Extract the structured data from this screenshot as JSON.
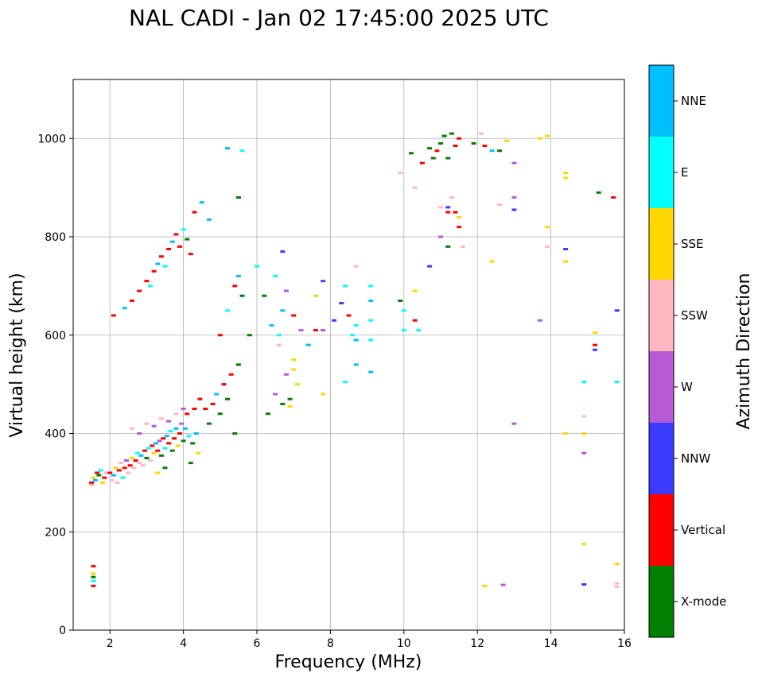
{
  "chart_data": {
    "type": "scatter",
    "title": "NAL CADI - Jan 02 17:45:00 2025 UTC",
    "xlabel": "Frequency (MHz)",
    "ylabel": "Virtual height (km)",
    "xlim": [
      1,
      16
    ],
    "ylim": [
      0,
      1120
    ],
    "xticks": [
      2,
      4,
      6,
      8,
      10,
      12,
      14,
      16
    ],
    "yticks": [
      0,
      200,
      400,
      600,
      800,
      1000
    ],
    "grid": true,
    "colorbar": {
      "label": "Azimuth Direction",
      "categories": [
        {
          "name": "X-mode",
          "color": "#008000"
        },
        {
          "name": "Vertical",
          "color": "#ff0000"
        },
        {
          "name": "NNW",
          "color": "#3b3bff"
        },
        {
          "name": "W",
          "color": "#b65ad6"
        },
        {
          "name": "SSW",
          "color": "#ffb6c1"
        },
        {
          "name": "SSE",
          "color": "#ffd700"
        },
        {
          "name": "E",
          "color": "#00ffff"
        },
        {
          "name": "NNE",
          "color": "#00bfff"
        }
      ]
    },
    "points": [
      [
        1.5,
        300,
        "Vertical"
      ],
      [
        1.55,
        310,
        "SSE"
      ],
      [
        1.6,
        305,
        "NNE"
      ],
      [
        1.5,
        295,
        "SSW"
      ],
      [
        1.65,
        320,
        "Vertical"
      ],
      [
        1.7,
        315,
        "X-mode"
      ],
      [
        1.8,
        300,
        "SSE"
      ],
      [
        1.75,
        325,
        "E"
      ],
      [
        1.85,
        310,
        "Vertical"
      ],
      [
        1.9,
        320,
        "SSW"
      ],
      [
        1.55,
        130,
        "Vertical"
      ],
      [
        1.55,
        115,
        "SSE"
      ],
      [
        1.55,
        100,
        "E"
      ],
      [
        1.55,
        90,
        "Vertical"
      ],
      [
        1.55,
        108,
        "X-mode"
      ],
      [
        2.0,
        320,
        "Vertical"
      ],
      [
        2.05,
        305,
        "SSW"
      ],
      [
        2.1,
        315,
        "NNE"
      ],
      [
        2.15,
        330,
        "SSE"
      ],
      [
        2.2,
        300,
        "SSW"
      ],
      [
        2.25,
        325,
        "Vertical"
      ],
      [
        2.3,
        340,
        "SSW"
      ],
      [
        2.35,
        310,
        "E"
      ],
      [
        2.4,
        330,
        "Vertical"
      ],
      [
        2.45,
        345,
        "W"
      ],
      [
        2.5,
        320,
        "SSW"
      ],
      [
        2.55,
        335,
        "Vertical"
      ],
      [
        2.6,
        350,
        "SSE"
      ],
      [
        2.65,
        330,
        "SSW"
      ],
      [
        2.7,
        345,
        "Vertical"
      ],
      [
        2.75,
        360,
        "E"
      ],
      [
        2.8,
        340,
        "SSW"
      ],
      [
        2.85,
        355,
        "NNE"
      ],
      [
        2.9,
        335,
        "SSW"
      ],
      [
        2.95,
        365,
        "Vertical"
      ],
      [
        3.0,
        350,
        "X-mode"
      ],
      [
        3.05,
        370,
        "E"
      ],
      [
        3.1,
        345,
        "SSW"
      ],
      [
        3.15,
        375,
        "Vertical"
      ],
      [
        3.2,
        360,
        "SSE"
      ],
      [
        3.25,
        380,
        "NNE"
      ],
      [
        3.3,
        365,
        "Vertical"
      ],
      [
        3.35,
        385,
        "W"
      ],
      [
        3.4,
        355,
        "X-mode"
      ],
      [
        3.45,
        390,
        "Vertical"
      ],
      [
        3.5,
        370,
        "E"
      ],
      [
        3.55,
        395,
        "NNE"
      ],
      [
        3.6,
        380,
        "Vertical"
      ],
      [
        3.65,
        405,
        "E"
      ],
      [
        3.7,
        365,
        "X-mode"
      ],
      [
        3.75,
        390,
        "Vertical"
      ],
      [
        3.8,
        410,
        "NNE"
      ],
      [
        3.85,
        375,
        "SSE"
      ],
      [
        3.9,
        400,
        "Vertical"
      ],
      [
        3.95,
        420,
        "W"
      ],
      [
        4.0,
        385,
        "X-mode"
      ],
      [
        4.05,
        410,
        "NNE"
      ],
      [
        4.1,
        440,
        "Vertical"
      ],
      [
        4.15,
        395,
        "E"
      ],
      [
        4.2,
        340,
        "X-mode"
      ],
      [
        4.25,
        380,
        "X-mode"
      ],
      [
        4.3,
        450,
        "Vertical"
      ],
      [
        4.35,
        400,
        "NNE"
      ],
      [
        4.4,
        360,
        "SSE"
      ],
      [
        4.45,
        470,
        "Vertical"
      ],
      [
        2.6,
        410,
        "SSW"
      ],
      [
        2.8,
        400,
        "W"
      ],
      [
        3.0,
        420,
        "SSW"
      ],
      [
        3.2,
        415,
        "W"
      ],
      [
        3.4,
        430,
        "SSW"
      ],
      [
        3.6,
        425,
        "W"
      ],
      [
        3.8,
        440,
        "SSW"
      ],
      [
        4.0,
        450,
        "W"
      ],
      [
        3.3,
        320,
        "SSE"
      ],
      [
        3.5,
        330,
        "X-mode"
      ],
      [
        2.1,
        640,
        "Vertical"
      ],
      [
        2.4,
        655,
        "NNE"
      ],
      [
        2.6,
        670,
        "Vertical"
      ],
      [
        2.8,
        690,
        "Vertical"
      ],
      [
        3.0,
        710,
        "Vertical"
      ],
      [
        3.1,
        700,
        "E"
      ],
      [
        3.2,
        730,
        "Vertical"
      ],
      [
        3.3,
        745,
        "NNE"
      ],
      [
        3.4,
        760,
        "Vertical"
      ],
      [
        3.5,
        740,
        "E"
      ],
      [
        3.6,
        775,
        "Vertical"
      ],
      [
        3.7,
        790,
        "NNE"
      ],
      [
        3.8,
        805,
        "Vertical"
      ],
      [
        3.9,
        780,
        "Vertical"
      ],
      [
        4.0,
        815,
        "E"
      ],
      [
        4.1,
        795,
        "X-mode"
      ],
      [
        4.2,
        765,
        "Vertical"
      ],
      [
        4.3,
        850,
        "Vertical"
      ],
      [
        4.5,
        870,
        "NNE"
      ],
      [
        4.7,
        835,
        "NNE"
      ],
      [
        4.6,
        450,
        "Vertical"
      ],
      [
        4.7,
        420,
        "X-mode"
      ],
      [
        4.8,
        460,
        "Vertical"
      ],
      [
        4.9,
        480,
        "NNE"
      ],
      [
        5.0,
        440,
        "X-mode"
      ],
      [
        5.1,
        500,
        "Vertical"
      ],
      [
        5.2,
        470,
        "X-mode"
      ],
      [
        5.3,
        520,
        "Vertical"
      ],
      [
        5.4,
        400,
        "X-mode"
      ],
      [
        5.5,
        540,
        "X-mode"
      ],
      [
        5.0,
        600,
        "Vertical"
      ],
      [
        5.2,
        650,
        "E"
      ],
      [
        5.4,
        700,
        "Vertical"
      ],
      [
        5.5,
        720,
        "NNE"
      ],
      [
        5.6,
        680,
        "X-mode"
      ],
      [
        5.8,
        600,
        "X-mode"
      ],
      [
        6.0,
        740,
        "E"
      ],
      [
        5.2,
        980,
        "NNE"
      ],
      [
        5.6,
        975,
        "E"
      ],
      [
        5.5,
        880,
        "X-mode"
      ],
      [
        6.2,
        680,
        "X-mode"
      ],
      [
        6.4,
        620,
        "NNE"
      ],
      [
        6.5,
        720,
        "E"
      ],
      [
        6.6,
        580,
        "SSW"
      ],
      [
        6.7,
        650,
        "NNE"
      ],
      [
        6.8,
        520,
        "W"
      ],
      [
        6.9,
        470,
        "X-mode"
      ],
      [
        7.0,
        550,
        "SSE"
      ],
      [
        7.1,
        500,
        "SSE"
      ],
      [
        7.2,
        610,
        "W"
      ],
      [
        6.3,
        440,
        "X-mode"
      ],
      [
        6.5,
        480,
        "W"
      ],
      [
        6.7,
        460,
        "X-mode"
      ],
      [
        6.9,
        455,
        "SSE"
      ],
      [
        7.0,
        530,
        "SSE"
      ],
      [
        6.6,
        600,
        "E"
      ],
      [
        6.8,
        690,
        "W"
      ],
      [
        7.0,
        640,
        "Vertical"
      ],
      [
        6.7,
        770,
        "NNW"
      ],
      [
        7.4,
        580,
        "NNE"
      ],
      [
        7.6,
        610,
        "Vertical"
      ],
      [
        7.6,
        680,
        "SSE"
      ],
      [
        7.8,
        610,
        "W"
      ],
      [
        7.8,
        710,
        "NNW"
      ],
      [
        7.8,
        480,
        "SSE"
      ],
      [
        8.1,
        630,
        "NNW"
      ],
      [
        8.3,
        665,
        "NNW"
      ],
      [
        8.4,
        700,
        "E"
      ],
      [
        8.5,
        640,
        "Vertical"
      ],
      [
        8.6,
        600,
        "E"
      ],
      [
        8.7,
        590,
        "NNE"
      ],
      [
        8.7,
        540,
        "NNE"
      ],
      [
        8.7,
        620,
        "E"
      ],
      [
        8.7,
        740,
        "SSW"
      ],
      [
        8.4,
        505,
        "E"
      ],
      [
        9.1,
        700,
        "E"
      ],
      [
        9.1,
        670,
        "NNE"
      ],
      [
        9.1,
        630,
        "E"
      ],
      [
        9.1,
        525,
        "NNE"
      ],
      [
        9.1,
        590,
        "E"
      ],
      [
        9.9,
        670,
        "X-mode"
      ],
      [
        10.0,
        650,
        "E"
      ],
      [
        10.0,
        610,
        "E"
      ],
      [
        10.3,
        690,
        "SSE"
      ],
      [
        10.3,
        630,
        "Vertical"
      ],
      [
        10.4,
        610,
        "E"
      ],
      [
        10.7,
        740,
        "NNW"
      ],
      [
        9.9,
        930,
        "SSW"
      ],
      [
        10.2,
        970,
        "X-mode"
      ],
      [
        10.3,
        900,
        "SSW"
      ],
      [
        10.5,
        950,
        "Vertical"
      ],
      [
        10.7,
        980,
        "X-mode"
      ],
      [
        10.8,
        960,
        "X-mode"
      ],
      [
        10.9,
        975,
        "Vertical"
      ],
      [
        11.0,
        990,
        "X-mode"
      ],
      [
        11.1,
        1005,
        "X-mode"
      ],
      [
        11.2,
        960,
        "X-mode"
      ],
      [
        11.3,
        1010,
        "X-mode"
      ],
      [
        11.4,
        985,
        "Vertical"
      ],
      [
        11.5,
        1000,
        "Vertical"
      ],
      [
        11.2,
        860,
        "NNW"
      ],
      [
        11.3,
        880,
        "SSW"
      ],
      [
        11.4,
        850,
        "Vertical"
      ],
      [
        11.5,
        840,
        "SSE"
      ],
      [
        11.5,
        820,
        "Vertical"
      ],
      [
        11.2,
        850,
        "Vertical"
      ],
      [
        11.0,
        800,
        "W"
      ],
      [
        11.2,
        780,
        "X-mode"
      ],
      [
        11.6,
        780,
        "SSW"
      ],
      [
        11.0,
        860,
        "SSW"
      ],
      [
        11.9,
        990,
        "X-mode"
      ],
      [
        12.1,
        1010,
        "SSW"
      ],
      [
        12.2,
        985,
        "Vertical"
      ],
      [
        12.4,
        975,
        "NNE"
      ],
      [
        12.6,
        975,
        "X-mode"
      ],
      [
        12.8,
        995,
        "SSE"
      ],
      [
        13.0,
        950,
        "W"
      ],
      [
        13.0,
        880,
        "W"
      ],
      [
        13.0,
        855,
        "NNW"
      ],
      [
        12.6,
        865,
        "SSW"
      ],
      [
        13.7,
        1000,
        "SSE"
      ],
      [
        13.9,
        1005,
        "SSE"
      ],
      [
        14.4,
        920,
        "SSE"
      ],
      [
        14.4,
        930,
        "SSE"
      ],
      [
        15.3,
        890,
        "X-mode"
      ],
      [
        15.7,
        880,
        "Vertical"
      ],
      [
        13.9,
        820,
        "SSE"
      ],
      [
        13.9,
        780,
        "SSW"
      ],
      [
        14.4,
        775,
        "NNW"
      ],
      [
        14.4,
        750,
        "SSE"
      ],
      [
        12.4,
        750,
        "SSE"
      ],
      [
        13.7,
        630,
        "W"
      ],
      [
        15.2,
        605,
        "SSE"
      ],
      [
        15.2,
        580,
        "Vertical"
      ],
      [
        15.2,
        570,
        "NNW"
      ],
      [
        15.8,
        650,
        "NNW"
      ],
      [
        14.9,
        505,
        "E"
      ],
      [
        15.8,
        505,
        "E"
      ],
      [
        13.0,
        420,
        "W"
      ],
      [
        14.4,
        400,
        "SSE"
      ],
      [
        14.9,
        435,
        "SSW"
      ],
      [
        14.9,
        400,
        "SSE"
      ],
      [
        14.9,
        360,
        "W"
      ],
      [
        14.9,
        175,
        "SSE"
      ],
      [
        15.8,
        135,
        "SSE"
      ],
      [
        14.9,
        93,
        "NNW"
      ],
      [
        15.8,
        95,
        "SSW"
      ],
      [
        15.8,
        88,
        "SSW"
      ],
      [
        12.2,
        90,
        "SSE"
      ],
      [
        12.7,
        92,
        "W"
      ]
    ]
  }
}
